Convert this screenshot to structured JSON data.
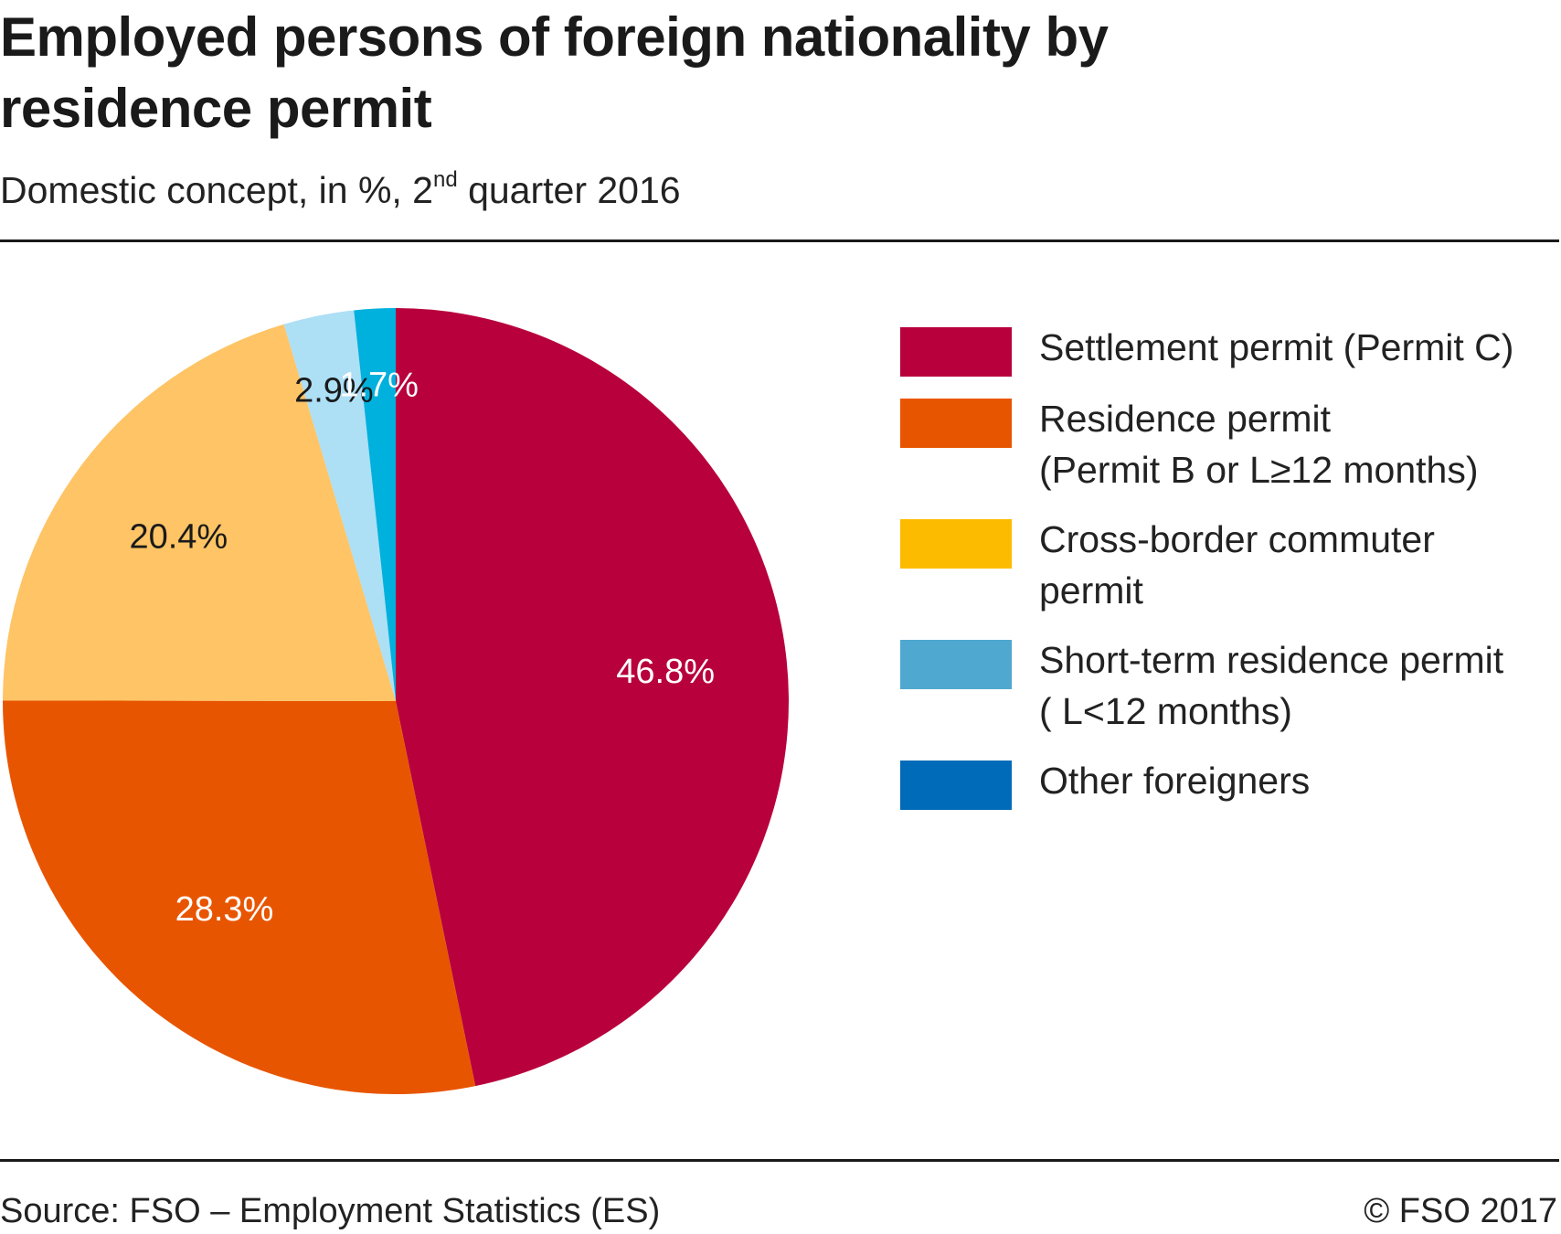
{
  "chart_data": {
    "type": "pie",
    "title": "Employed persons of foreign nationality by residence permit",
    "subtitle_main": "Domestic concept, in %, 2",
    "subtitle_sup": "nd",
    "subtitle_end": " quarter 2016",
    "slices": [
      {
        "label": "Settlement permit (Permit C)",
        "value": 46.8,
        "display": "46.8%",
        "color": "#b8003c",
        "label_color": "#ffffff"
      },
      {
        "label": "Residence permit\n(Permit B or L≥12 months)",
        "value": 28.3,
        "display": "28.3%",
        "color": "#e85500",
        "label_color": "#ffffff"
      },
      {
        "label": "Cross-border commuter\npermit",
        "value": 20.4,
        "display": "20.4%",
        "color": "#fec465",
        "label_color": "#1a1a1a"
      },
      {
        "label": "Short-term residence permit\n( L<12 months)",
        "value": 2.9,
        "display": "2.9%",
        "color": "#addff5",
        "label_color": "#1a1a1a"
      },
      {
        "label": "Other foreigners",
        "value": 1.7,
        "display": "1.7%",
        "color": "#00b0dd",
        "label_color": "#ffffff"
      }
    ],
    "legend": [
      {
        "label": "Settlement permit (Permit C)",
        "color": "#b8003c"
      },
      {
        "label": "Residence permit\n(Permit B or L≥12 months)",
        "color": "#e85500"
      },
      {
        "label": "Cross-border commuter\npermit",
        "color": "#fdbb00"
      },
      {
        "label": "Short-term residence permit\n( L<12 months)",
        "color": "#4fa8cf"
      },
      {
        "label": "Other foreigners",
        "color": "#006bb8"
      }
    ],
    "legend_position": "right"
  },
  "footer": {
    "source": "Source: FSO – Employment Statistics (ES)",
    "copyright": "© FSO 2017"
  }
}
